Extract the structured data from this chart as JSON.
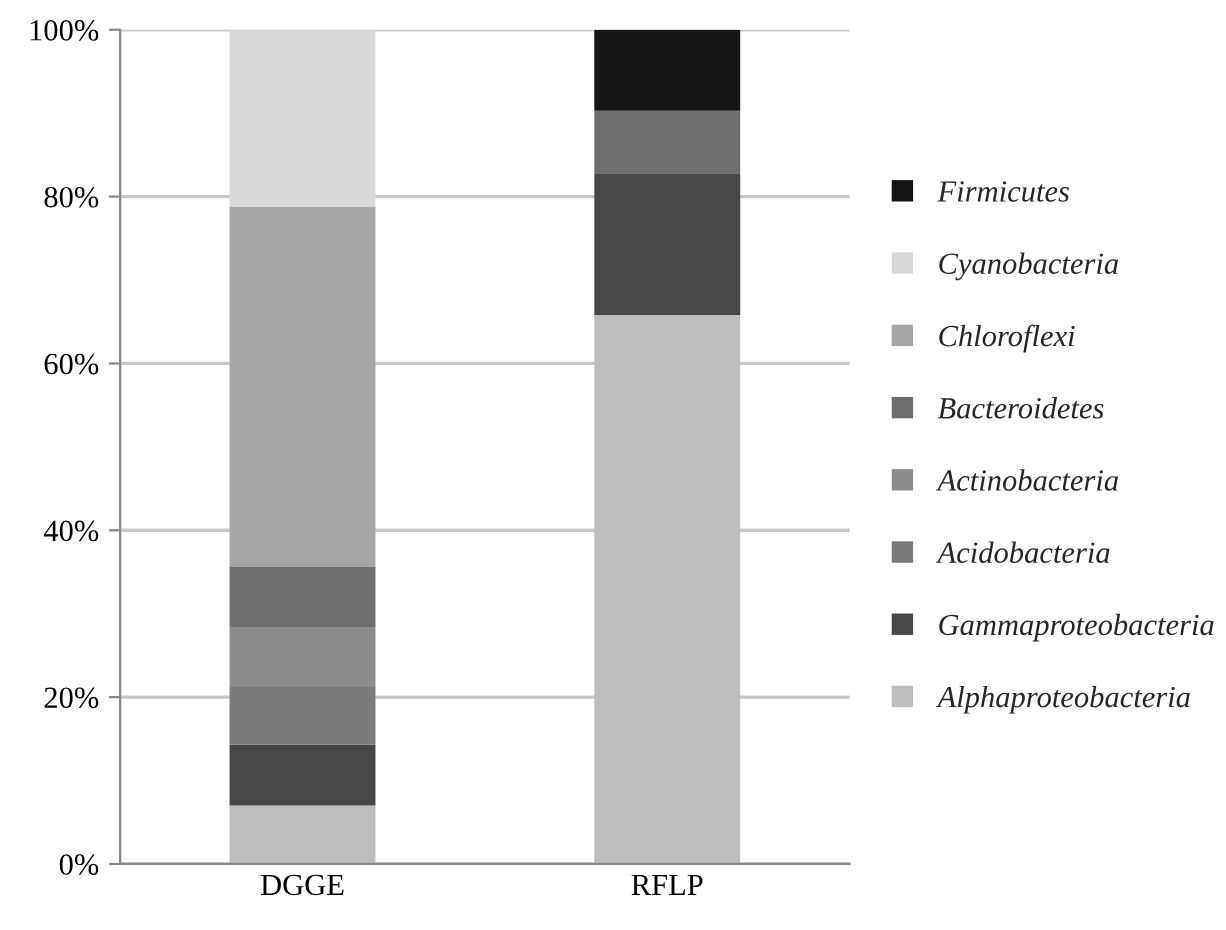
{
  "chart_data": {
    "type": "bar",
    "stacked": true,
    "categories": [
      "DGGE",
      "RFLP"
    ],
    "series": [
      {
        "name": "Alphaproteobacteria",
        "color": "#bdbdbd",
        "values": [
          7.0,
          65.8
        ]
      },
      {
        "name": "Gammaproteobacteria",
        "color": "#474747",
        "values": [
          7.3,
          17.0
        ]
      },
      {
        "name": "Acidobacteria",
        "color": "#7a7a7a",
        "values": [
          6.9,
          null
        ]
      },
      {
        "name": "Actinobacteria",
        "color": "#8c8c8c",
        "values": [
          7.2,
          null
        ]
      },
      {
        "name": "Bacteroidetes",
        "color": "#6e6e6e",
        "values": [
          7.2,
          7.5
        ]
      },
      {
        "name": "Chloroflexi",
        "color": "#a6a6a6",
        "values": [
          43.2,
          null
        ]
      },
      {
        "name": "Cyanobacteria",
        "color": "#d9d9d9",
        "values": [
          21.2,
          null
        ]
      },
      {
        "name": "Firmicutes",
        "color": "#141414",
        "values": [
          null,
          9.7
        ]
      }
    ],
    "ylim": [
      0,
      100
    ],
    "yticks": [
      {
        "value": 0,
        "label": "0%"
      },
      {
        "value": 20,
        "label": "20%"
      },
      {
        "value": 40,
        "label": "40%"
      },
      {
        "value": 60,
        "label": "60%"
      },
      {
        "value": 80,
        "label": "80%"
      },
      {
        "value": 100,
        "label": "100%"
      }
    ],
    "grid": "y",
    "legend": "right"
  }
}
